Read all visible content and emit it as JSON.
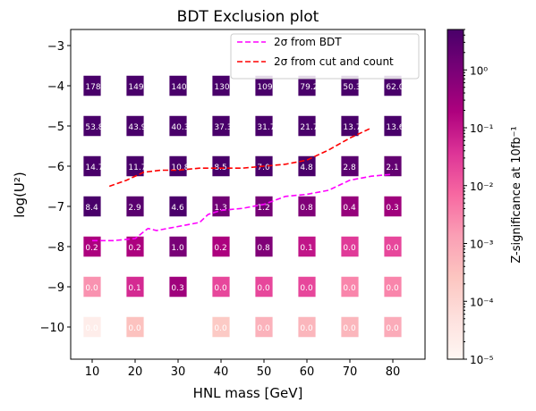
{
  "chart_data": {
    "type": "heatmap",
    "title": "BDT Exclusion plot",
    "xlabel": "HNL mass [GeV]",
    "ylabel": "log(U²)",
    "xlim": [
      5,
      87.5
    ],
    "ylim": [
      -10.8,
      -2.6
    ],
    "x_ticks": [
      10,
      20,
      30,
      40,
      50,
      60,
      70,
      80
    ],
    "y_ticks": [
      -3,
      -4,
      -5,
      -6,
      -7,
      -8,
      -9,
      -10
    ],
    "x_tick_labels": [
      "10",
      "20",
      "30",
      "40",
      "50",
      "60",
      "70",
      "80"
    ],
    "y_tick_labels": [
      "−3",
      "−4",
      "−5",
      "−6",
      "−7",
      "−8",
      "−9",
      "−10"
    ],
    "grid": false,
    "masses": [
      10,
      20,
      30,
      40,
      50,
      60,
      70,
      80
    ],
    "log_couplings": [
      -4,
      -5,
      -6,
      -7,
      -8,
      -9,
      -10
    ],
    "cells": [
      {
        "y": -4,
        "values": [
          178.1,
          149.0,
          140.7,
          130.5,
          109.4,
          79.2,
          50.3,
          62.0
        ],
        "labels": [
          "178.1",
          "149.0",
          "140.7",
          "130.5",
          "109.4",
          "79.2",
          "50.3",
          "62.0"
        ],
        "z": [
          5,
          5,
          5,
          5,
          5,
          5,
          5,
          5
        ]
      },
      {
        "y": -5,
        "values": [
          53.8,
          43.9,
          40.3,
          37.3,
          31.7,
          21.7,
          13.7,
          13.6
        ],
        "labels": [
          "53.8",
          "43.9",
          "40.3",
          "37.3",
          "31.7",
          "21.7",
          "13.7",
          "13.6"
        ],
        "z": [
          5,
          5,
          5,
          5,
          5,
          5,
          5,
          5
        ]
      },
      {
        "y": -6,
        "values": [
          14.7,
          11.7,
          10.8,
          8.5,
          7.0,
          4.8,
          2.8,
          2.1
        ],
        "labels": [
          "14.7",
          "11.7",
          "10.8",
          "8.5",
          "7.0",
          "4.8",
          "2.8",
          "2.1"
        ],
        "z": [
          5,
          5,
          5,
          5,
          5,
          4.8,
          2.8,
          2.1
        ]
      },
      {
        "y": -7,
        "values": [
          8.4,
          2.9,
          4.6,
          1.3,
          1.2,
          0.8,
          0.4,
          0.3
        ],
        "labels": [
          "8.4",
          "2.9",
          "4.6",
          "1.3",
          "1.2",
          "0.8",
          "0.4",
          "0.3"
        ],
        "z": [
          5,
          2.9,
          4.6,
          1.3,
          1.2,
          0.8,
          0.4,
          0.3
        ]
      },
      {
        "y": -8,
        "values": [
          0.2,
          0.2,
          1.0,
          0.2,
          0.8,
          0.1,
          0.0,
          0.0
        ],
        "labels": [
          "0.2",
          "0.2",
          "1.0",
          "0.2",
          "0.8",
          "0.1",
          "0.0",
          "0.0"
        ],
        "z": [
          0.2,
          0.2,
          1.0,
          0.2,
          0.8,
          0.1,
          0.03,
          0.02
        ]
      },
      {
        "y": -9,
        "values": [
          0.0,
          0.1,
          0.3,
          0.0,
          0.0,
          0.0,
          0.0,
          0.0
        ],
        "labels": [
          "0.0",
          "0.1",
          "0.3",
          "0.0",
          "0.0",
          "0.0",
          "0.0",
          "0.0"
        ],
        "z": [
          0.002,
          0.05,
          0.3,
          0.02,
          0.02,
          0.02,
          0.003,
          0.003
        ]
      },
      {
        "y": -10,
        "values": [
          0.0,
          0.0,
          null,
          0.0,
          0.0,
          0.0,
          0.0,
          0.0
        ],
        "labels": [
          "0.0",
          "0.0",
          "",
          "0.0",
          "0.0",
          "0.0",
          "0.0",
          "0.0"
        ],
        "z": [
          2e-05,
          0.0003,
          null,
          0.0002,
          0.0006,
          0.0005,
          0.0005,
          0.0008
        ]
      }
    ],
    "series": [
      {
        "name": "2σ from BDT",
        "style": "dashed",
        "color": "#ff00ff",
        "x": [
          10,
          15,
          20,
          23,
          25,
          30,
          35,
          37,
          40,
          45,
          50,
          55,
          60,
          65,
          70,
          75,
          80
        ],
        "y": [
          -7.85,
          -7.85,
          -7.8,
          -7.55,
          -7.6,
          -7.5,
          -7.4,
          -7.2,
          -7.1,
          -7.05,
          -6.95,
          -6.75,
          -6.7,
          -6.6,
          -6.35,
          -6.25,
          -6.2
        ]
      },
      {
        "name": "2σ from cut and count",
        "style": "dashed",
        "color": "#ff0000",
        "x": [
          14,
          18,
          22,
          26,
          30,
          35,
          40,
          45,
          50,
          55,
          60,
          65,
          70,
          75
        ],
        "y": [
          -6.5,
          -6.35,
          -6.15,
          -6.1,
          -6.1,
          -6.05,
          -6.05,
          -6.05,
          -6.0,
          -5.95,
          -5.85,
          -5.6,
          -5.3,
          -5.05
        ]
      }
    ],
    "legend": {
      "placement": "top-right",
      "entries": [
        "2σ from BDT",
        "2σ from cut and count"
      ]
    },
    "colorbar": {
      "label": "Z-significance at 10fb⁻¹",
      "scale": "log",
      "range": [
        1e-05,
        5
      ],
      "ticks": [
        1e-05,
        0.0001,
        0.001,
        0.01,
        0.1,
        1
      ],
      "tick_labels": [
        "10⁻⁵",
        "10⁻⁴",
        "10⁻³",
        "10⁻²",
        "10⁻¹",
        "10⁰"
      ],
      "colors": [
        "#fff7f3",
        "#fde0dd",
        "#fcc5c0",
        "#fa9fb5",
        "#f768a1",
        "#dd3497",
        "#ae017e",
        "#7a0177",
        "#49006a"
      ]
    }
  }
}
